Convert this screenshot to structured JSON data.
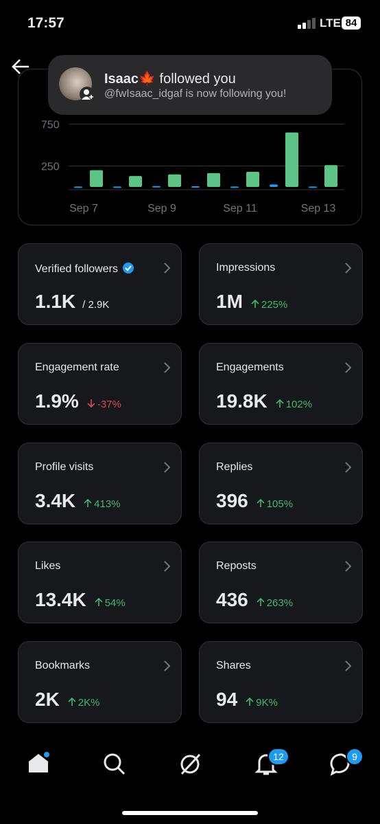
{
  "status_bar": {
    "time": "17:57",
    "network": "LTE",
    "battery": "84"
  },
  "notification": {
    "name": "Isaac",
    "emoji": "🍁",
    "action": "followed you",
    "message": "@fwIsaac_idgaf is now following you!"
  },
  "chart_data": {
    "type": "bar",
    "categories": [
      "Sep 7",
      null,
      "Sep 9",
      null,
      "Sep 11",
      null,
      "Sep 13"
    ],
    "series": [
      {
        "color": "#1d9bf0",
        "values": [
          5,
          5,
          10,
          8,
          5,
          30,
          5
        ]
      },
      {
        "color": "#5cc586",
        "values": [
          200,
          130,
          150,
          165,
          180,
          650,
          260
        ]
      }
    ],
    "ylim": [
      0,
      900
    ],
    "yticks": [
      250,
      750
    ],
    "grid": true
  },
  "cards": [
    {
      "label": "Verified followers",
      "verified": true,
      "value": "1.1K",
      "total": "/ 2.9K"
    },
    {
      "label": "Impressions",
      "value": "1M",
      "change": "225%",
      "trend": "up"
    },
    {
      "label": "Engagement rate",
      "value": "1.9%",
      "change": "-37%",
      "trend": "down"
    },
    {
      "label": "Engagements",
      "value": "19.8K",
      "change": "102%",
      "trend": "up"
    },
    {
      "label": "Profile visits",
      "value": "3.4K",
      "change": "413%",
      "trend": "up"
    },
    {
      "label": "Replies",
      "value": "396",
      "change": "105%",
      "trend": "up"
    },
    {
      "label": "Likes",
      "value": "13.4K",
      "change": "54%",
      "trend": "up"
    },
    {
      "label": "Reposts",
      "value": "436",
      "change": "263%",
      "trend": "up"
    },
    {
      "label": "Bookmarks",
      "value": "2K",
      "change": "2K%",
      "trend": "up"
    },
    {
      "label": "Shares",
      "value": "94",
      "change": "9K%",
      "trend": "up"
    }
  ],
  "nav": {
    "notifications_badge": 12,
    "messages_badge": 9
  }
}
